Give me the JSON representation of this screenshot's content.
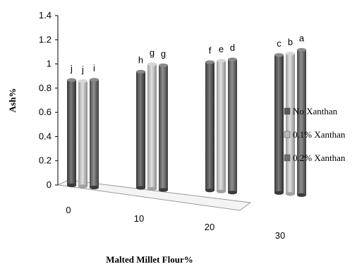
{
  "chart_data": {
    "type": "bar",
    "title": "",
    "xlabel": "Malted Millet Flour%",
    "ylabel": "Ash%",
    "categories": [
      "0",
      "10",
      "20",
      "30"
    ],
    "ylim": [
      0,
      1.4
    ],
    "yticks": [
      "0",
      "0.2",
      "0.4",
      "0.6",
      "0.8",
      "1",
      "1.2",
      "1.4"
    ],
    "grid": false,
    "legend_position": "right",
    "series": [
      {
        "name": "No Xanthan",
        "values": [
          0.87,
          0.96,
          1.06,
          1.14
        ],
        "labels": [
          "j",
          "h",
          "f",
          "c"
        ],
        "color": "#5a5a5a"
      },
      {
        "name": "0.1% Xanthan",
        "values": [
          0.87,
          1.03,
          1.08,
          1.16
        ],
        "labels": [
          "j",
          "g",
          "e",
          "b"
        ],
        "color": "#b8b8b8"
      },
      {
        "name": "0.2% Xanthan",
        "values": [
          0.89,
          1.03,
          1.1,
          1.2
        ],
        "labels": [
          "i",
          "g",
          "d",
          "a"
        ],
        "color": "#6f6f6f"
      }
    ]
  }
}
